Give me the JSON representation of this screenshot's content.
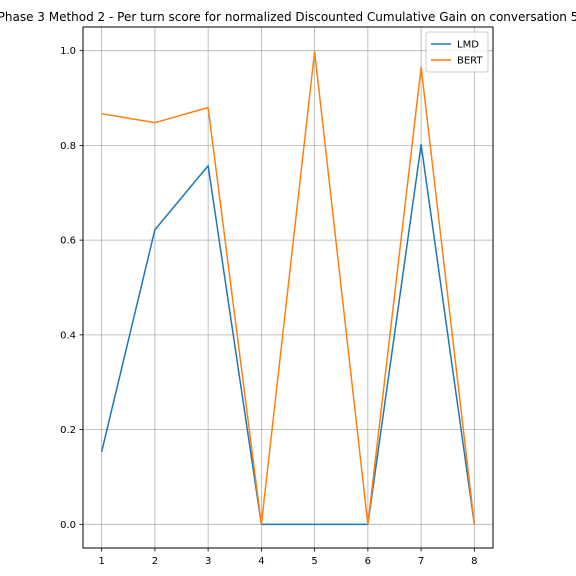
{
  "chart_data": {
    "type": "line",
    "title": "Phase 3 Method 2 - Per turn score for normalized Discounted Cumulative Gain on conversation 5",
    "xlabel": "",
    "ylabel": "",
    "x": [
      1,
      2,
      3,
      4,
      5,
      6,
      7,
      8
    ],
    "xticks": [
      "1",
      "2",
      "3",
      "4",
      "5",
      "6",
      "7",
      "8"
    ],
    "xlim": [
      0.65,
      8.35
    ],
    "ylim": [
      -0.05,
      1.05
    ],
    "yticks": [
      "0.0",
      "0.2",
      "0.4",
      "0.6",
      "0.8",
      "1.0"
    ],
    "grid": true,
    "legend_position": "top-right",
    "series": [
      {
        "name": "LMD",
        "color": "#1f77b4",
        "values": [
          0.153,
          0.622,
          0.757,
          0.0,
          0.0,
          0.0,
          0.802,
          0.0
        ]
      },
      {
        "name": "BERT",
        "color": "#ff7f0e",
        "values": [
          0.867,
          0.848,
          0.88,
          0.0,
          0.998,
          0.0,
          0.965,
          0.0
        ]
      }
    ]
  }
}
